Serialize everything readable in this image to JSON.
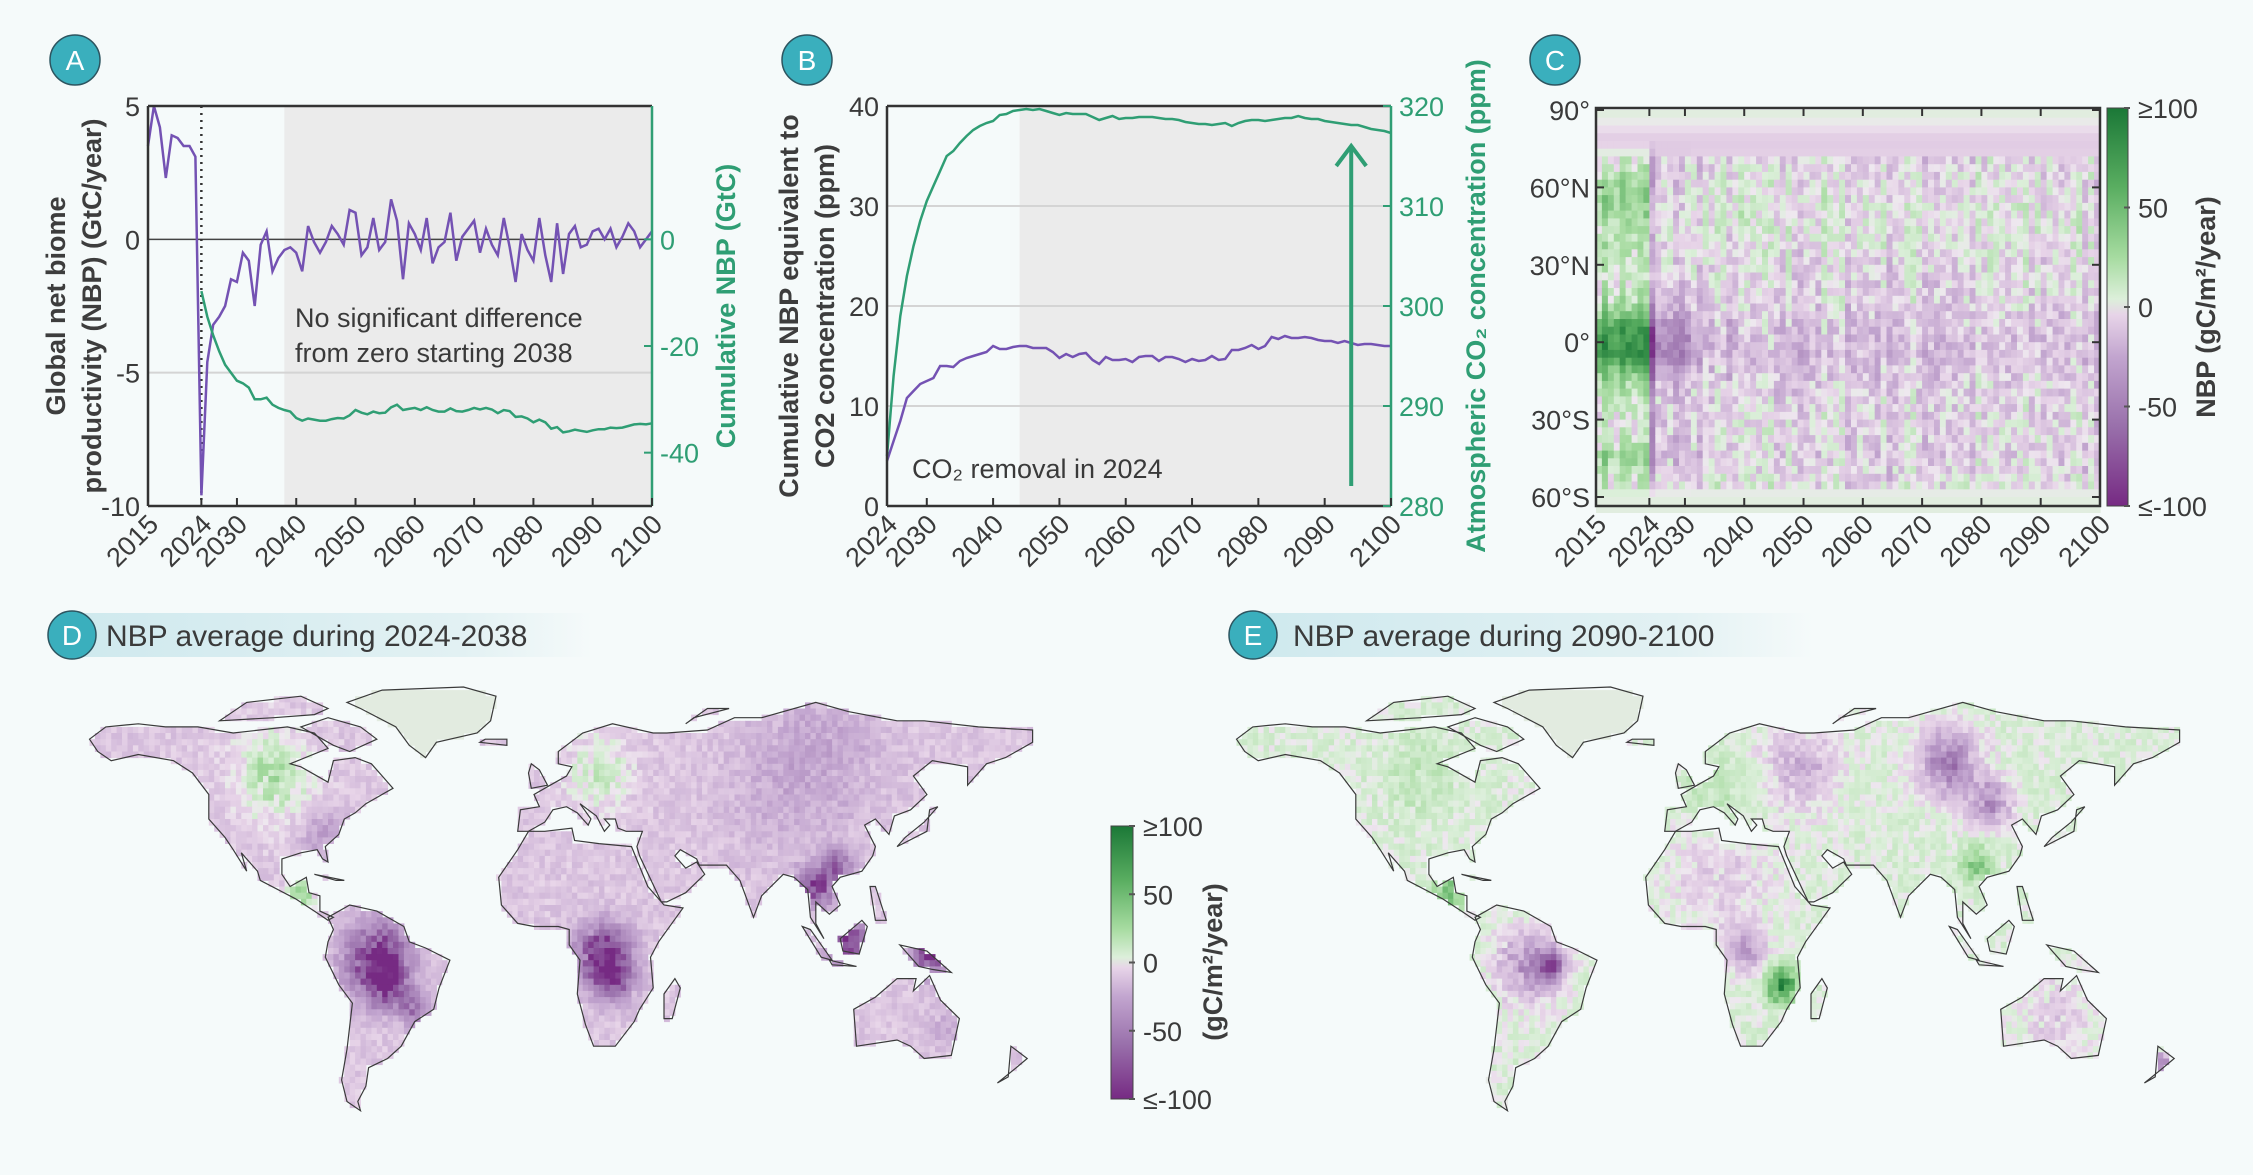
{
  "colors": {
    "background": "#f5fafa",
    "nbp_line": "#7452b3",
    "cumulative_line": "#2f9e74",
    "badge": "#3aafbd",
    "shade": "#ebebeb",
    "colormap": [
      "#762a83",
      "#9970ab",
      "#c2a5cf",
      "#e7d4e8",
      "#eee6ef",
      "#dcefda",
      "#a6dba0",
      "#5aae61",
      "#1b7837"
    ]
  },
  "chart_data": [
    {
      "panel": "A",
      "type": "line",
      "annotation": [
        "No significant difference",
        "from zero starting 2038"
      ],
      "ylabel": [
        "Global net biome",
        "productivity (NBP) (GtC/year)"
      ],
      "ylabel_right": "Cumulative NBP (GtC)",
      "xlim": [
        2015,
        2100
      ],
      "ylim": [
        -10,
        5
      ],
      "ylim_right": [
        -50,
        25
      ],
      "x_ticks": [
        "2015",
        "2024",
        "2030",
        "2040",
        "2050",
        "2060",
        "2070",
        "2080",
        "2090",
        "2100"
      ],
      "y_ticks": [
        "5",
        "0",
        "-5",
        "-10"
      ],
      "y_ticks_right": [
        "0",
        "-20",
        "-40"
      ],
      "shaded_from": 2038,
      "vline": 2024,
      "series": [
        {
          "axis": "left",
          "start": 2015,
          "values": [
            3.5,
            5,
            4.2,
            2.3,
            3.9,
            3.8,
            3.5,
            3.5,
            3.1,
            -9.6,
            -4.6,
            -3.2,
            -2.9,
            -2.5,
            -1.5,
            -1.6,
            -0.5,
            -0.8,
            -2.5,
            -0.2,
            0.3,
            -1.2,
            -0.7,
            -0.4,
            -0.3,
            -0.5,
            -1.2,
            0.5,
            -0.1,
            -0.5,
            -0.1,
            0.5,
            0.2,
            -0.2,
            1.1,
            1.0,
            -0.6,
            -0.3,
            0.8,
            -0.4,
            -0.1,
            1.5,
            0.7,
            -1.5,
            0.6,
            0.2,
            -0.4,
            0.8,
            -0.9,
            -0.3,
            -0.1,
            1.0,
            -0.8,
            0.1,
            0.4,
            0.7,
            -0.5,
            0.4,
            -0.2,
            -0.6,
            0.8,
            -0.3,
            -1.6,
            0.2,
            -0.4,
            -0.8,
            0.8,
            -0.6,
            -1.6,
            0.6,
            -1.3,
            0.2,
            0.5,
            -0.3,
            -0.2,
            0.3,
            0.4,
            0.0,
            0.4,
            -0.3,
            0.1,
            0.6,
            0.3,
            -0.3,
            0.0,
            0.3
          ]
        },
        {
          "axis": "right",
          "start": 2024,
          "values": [
            -9.7,
            -14.5,
            -18,
            -21,
            -23.5,
            -25,
            -26.5,
            -27,
            -27.8,
            -30,
            -30,
            -29.7,
            -31,
            -31.6,
            -32,
            -32.3,
            -33.5,
            -34,
            -33.6,
            -33.8,
            -34,
            -34,
            -33.7,
            -33.5,
            -33.6,
            -33,
            -32,
            -32.5,
            -32.8,
            -32.3,
            -32.6,
            -32.5,
            -31.5,
            -31,
            -32,
            -31.8,
            -31.6,
            -32,
            -31.5,
            -32,
            -32.3,
            -32.3,
            -31.7,
            -32.2,
            -32.3,
            -32,
            -31.6,
            -31.9,
            -31.6,
            -31.9,
            -32.6,
            -32,
            -32.2,
            -33.3,
            -33.2,
            -33.6,
            -34.3,
            -33.8,
            -34.3,
            -35.5,
            -35.2,
            -36.2,
            -36,
            -35.7,
            -35.9,
            -36.1,
            -35.8,
            -35.6,
            -35.6,
            -35.3,
            -35.4,
            -35.3,
            -35,
            -34.7,
            -34.6,
            -34.7,
            -34.5
          ]
        }
      ]
    },
    {
      "panel": "B",
      "type": "line",
      "annotation": "CO₂ removal in 2024",
      "ylabel": [
        "Cumulative NBP equivalent to",
        "CO2  concentration (ppm)"
      ],
      "ylabel_right": "Atmospheric CO₂ concentration (ppm)",
      "xlim": [
        2024,
        2100
      ],
      "ylim": [
        0,
        40
      ],
      "ylim_right": [
        280,
        320
      ],
      "x_ticks": [
        "2024",
        "2030",
        "2040",
        "2050",
        "2060",
        "2070",
        "2080",
        "2090",
        "2100"
      ],
      "y_ticks": [
        "0",
        "10",
        "20",
        "30",
        "40"
      ],
      "y_ticks_right": [
        "280",
        "290",
        "300",
        "310",
        "320"
      ],
      "shaded_from": 2044,
      "arrow": {
        "x": 2094,
        "from": 282,
        "to": 316
      },
      "series": [
        {
          "axis": "left",
          "start": 2024,
          "values": [
            4.5,
            6.5,
            8.5,
            10.8,
            11.5,
            12.2,
            12.5,
            12.8,
            14,
            14,
            13.9,
            14.5,
            14.8,
            15,
            15.2,
            15.4,
            16,
            15.7,
            15.7,
            15.9,
            16,
            16,
            15.8,
            15.8,
            15.8,
            15.4,
            14.8,
            15.2,
            14.9,
            15.2,
            15.3,
            14.6,
            14.2,
            14.9,
            14.6,
            14.6,
            14.7,
            14.4,
            14.9,
            15,
            15,
            14.5,
            14.9,
            14.9,
            14.7,
            14.4,
            14.7,
            14.5,
            14.6,
            15,
            14.6,
            14.7,
            15.6,
            15.6,
            15.8,
            16.1,
            15.7,
            16,
            16.9,
            16.7,
            17,
            16.8,
            16.8,
            16.9,
            16.8,
            16.6,
            16.5,
            16.5,
            16.3,
            16.5,
            16.3,
            16.1,
            16.2,
            16.2,
            16.1,
            16.0,
            16.0
          ]
        },
        {
          "axis": "right",
          "start": 2024,
          "values": [
            285,
            293,
            299,
            303,
            306,
            308.5,
            310.5,
            312,
            313.5,
            315,
            315.5,
            316.3,
            317,
            317.6,
            318,
            318.3,
            318.5,
            319.1,
            319.2,
            319.5,
            319.6,
            319.7,
            319.6,
            319.7,
            319.5,
            319.3,
            319.1,
            319.3,
            319.2,
            319.2,
            319.2,
            318.9,
            318.6,
            318.8,
            319,
            318.7,
            318.8,
            318.8,
            318.9,
            318.9,
            318.9,
            318.8,
            318.7,
            318.7,
            318.6,
            318.4,
            318.3,
            318.2,
            318.2,
            318.1,
            318.2,
            318.3,
            318,
            318.3,
            318.5,
            318.6,
            318.6,
            318.5,
            318.6,
            318.7,
            318.8,
            318.8,
            319,
            318.8,
            318.7,
            318.7,
            318.5,
            318.4,
            318.3,
            318.2,
            318.1,
            318.1,
            317.9,
            317.7,
            317.6,
            317.5,
            317.3
          ]
        }
      ]
    },
    {
      "panel": "C",
      "type": "heatmap",
      "xlim": [
        2015,
        2100
      ],
      "ylim": [
        -63,
        90
      ],
      "x_ticks": [
        "2015",
        "2024",
        "2030",
        "2040",
        "2050",
        "2060",
        "2070",
        "2080",
        "2090",
        "2100"
      ],
      "y_ticks": [
        {
          "lat": 90,
          "label": "90°"
        },
        {
          "lat": 60,
          "label": "60°N"
        },
        {
          "lat": 30,
          "label": "30°N"
        },
        {
          "lat": 0,
          "label": "0°"
        },
        {
          "lat": -30,
          "label": "30°S"
        },
        {
          "lat": -60,
          "label": "60°S"
        }
      ],
      "colorbar_ticks": [
        "≥100",
        "50",
        "0",
        "-50",
        "≤-100"
      ],
      "colorbar_label": "NBP (gC/m²/year)",
      "periods": [
        "2015-2023",
        "2024",
        "2025-2030",
        "2031-2050",
        "2051-2100"
      ],
      "lat_rows": [
        {
          "lat": 87,
          "values": [
            3,
            3,
            3,
            3,
            3
          ]
        },
        {
          "lat": 78,
          "values": [
            -8,
            -8,
            -8,
            -8,
            -8
          ]
        },
        {
          "lat": 66,
          "values": [
            20,
            -30,
            -8,
            -3,
            -3
          ]
        },
        {
          "lat": 55,
          "values": [
            35,
            -25,
            -5,
            2,
            0
          ]
        },
        {
          "lat": 45,
          "values": [
            20,
            -20,
            -5,
            2,
            2
          ]
        },
        {
          "lat": 35,
          "values": [
            15,
            -25,
            -8,
            -3,
            -2
          ]
        },
        {
          "lat": 25,
          "values": [
            5,
            -15,
            -8,
            -5,
            -5
          ]
        },
        {
          "lat": 15,
          "values": [
            20,
            -40,
            -15,
            -8,
            -6
          ]
        },
        {
          "lat": 5,
          "values": [
            70,
            -90,
            -40,
            -15,
            -12
          ]
        },
        {
          "lat": -5,
          "values": [
            80,
            -100,
            -50,
            -18,
            -15
          ]
        },
        {
          "lat": -15,
          "values": [
            25,
            -60,
            -20,
            -10,
            -10
          ]
        },
        {
          "lat": -25,
          "values": [
            10,
            -30,
            -10,
            -8,
            -6
          ]
        },
        {
          "lat": -35,
          "values": [
            5,
            -40,
            -15,
            -5,
            -5
          ]
        },
        {
          "lat": -45,
          "values": [
            30,
            -60,
            -15,
            -8,
            -8
          ]
        },
        {
          "lat": -53,
          "values": [
            10,
            -20,
            -5,
            -3,
            -3
          ]
        },
        {
          "lat": -60,
          "values": [
            3,
            3,
            3,
            3,
            3
          ]
        }
      ]
    },
    {
      "panel": "D",
      "type": "map",
      "title": "NBP average during 2024-2038",
      "background_value": -10,
      "regions": [
        {
          "lon": -62,
          "lat": -6,
          "r": 12,
          "value": -100
        },
        {
          "lon": -58,
          "lat": -14,
          "r": 8,
          "value": -70
        },
        {
          "lon": 22,
          "lat": -4,
          "r": 10,
          "value": -95
        },
        {
          "lon": 25,
          "lat": -12,
          "r": 8,
          "value": -70
        },
        {
          "lon": 100,
          "lat": 18,
          "r": 7,
          "value": -85
        },
        {
          "lon": 108,
          "lat": 25,
          "r": 6,
          "value": -60
        },
        {
          "lon": 112,
          "lat": 0,
          "r": 8,
          "value": -85
        },
        {
          "lon": 142,
          "lat": -5,
          "r": 6,
          "value": -90
        },
        {
          "lon": 100,
          "lat": 60,
          "r": 25,
          "value": -25
        },
        {
          "lon": 80,
          "lat": 45,
          "r": 20,
          "value": -15
        },
        {
          "lon": -82,
          "lat": 36,
          "r": 8,
          "value": -30
        },
        {
          "lon": -100,
          "lat": 55,
          "r": 15,
          "value": 18
        },
        {
          "lon": 20,
          "lat": 55,
          "r": 12,
          "value": 12
        },
        {
          "lon": -90,
          "lat": 16,
          "r": 5,
          "value": 30
        },
        {
          "lon": -48,
          "lat": -22,
          "r": 6,
          "value": -50
        },
        {
          "lon": 148,
          "lat": -28,
          "r": 6,
          "value": -25
        }
      ],
      "colorbar_ticks": [
        "≥100",
        "50",
        "0",
        "-50",
        "≤-100"
      ],
      "colorbar_label": "(gC/m²/year)"
    },
    {
      "panel": "E",
      "type": "map",
      "title": "NBP average during 2090-2100",
      "background_value": 5,
      "regions": [
        {
          "lon": 95,
          "lat": 58,
          "r": 12,
          "value": -45
        },
        {
          "lon": 110,
          "lat": 45,
          "r": 8,
          "value": -40
        },
        {
          "lon": -60,
          "lat": -8,
          "r": 12,
          "value": -35
        },
        {
          "lon": -52,
          "lat": -8,
          "r": 5,
          "value": -65
        },
        {
          "lon": 33,
          "lat": -14,
          "r": 6,
          "value": 80
        },
        {
          "lon": 105,
          "lat": 25,
          "r": 6,
          "value": 40
        },
        {
          "lon": -90,
          "lat": 16,
          "r": 6,
          "value": 50
        },
        {
          "lon": 40,
          "lat": 58,
          "r": 15,
          "value": -20
        },
        {
          "lon": 10,
          "lat": 20,
          "r": 20,
          "value": -8
        },
        {
          "lon": 135,
          "lat": -25,
          "r": 15,
          "value": -8
        },
        {
          "lon": 172,
          "lat": -40,
          "r": 4,
          "value": -60
        },
        {
          "lon": 10,
          "lat": 50,
          "r": 15,
          "value": 15
        },
        {
          "lon": -100,
          "lat": 55,
          "r": 15,
          "value": 15
        },
        {
          "lon": 20,
          "lat": -3,
          "r": 8,
          "value": -25
        }
      ]
    }
  ],
  "badges": [
    "A",
    "B",
    "C",
    "D",
    "E"
  ]
}
